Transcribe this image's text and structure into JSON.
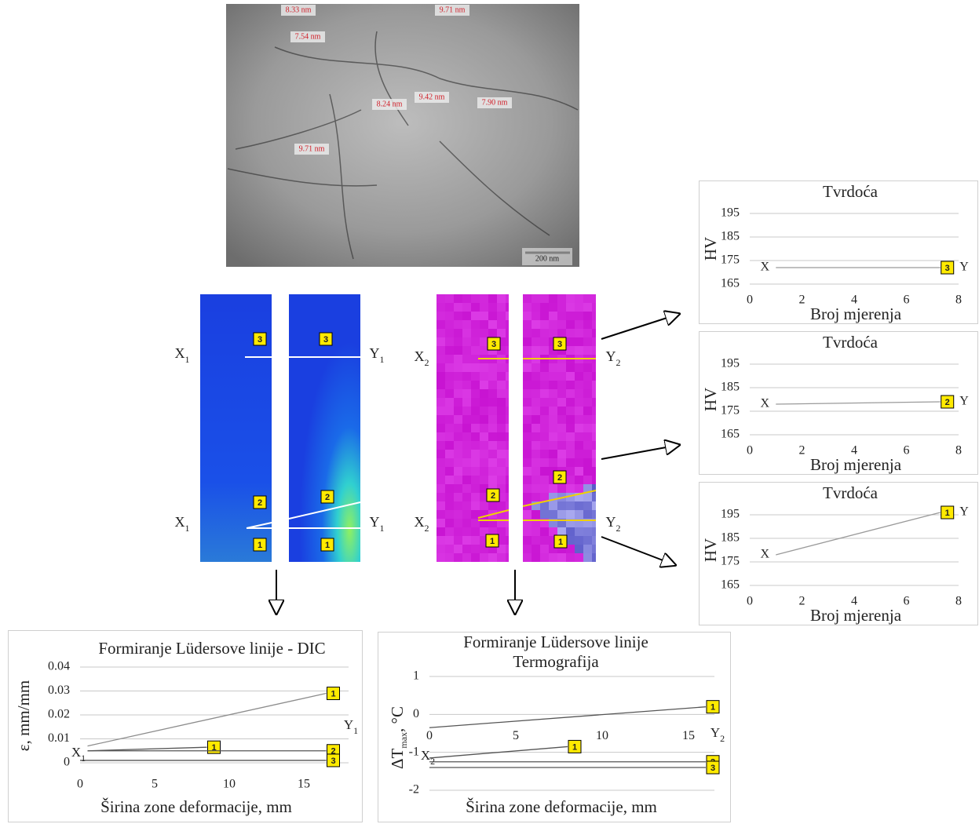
{
  "micrograph": {
    "measurements": [
      "8.33 nm",
      "9.71 nm",
      "7.54 nm",
      "8.24 nm",
      "9.42 nm",
      "7.90 nm",
      "9.71 nm"
    ],
    "scale_bar": "200 nm"
  },
  "dic_panels": {
    "labels": [
      {
        "text": "X",
        "sub": "1"
      },
      {
        "text": "Y",
        "sub": "1"
      },
      {
        "text": "X",
        "sub": "1"
      },
      {
        "text": "Y",
        "sub": "1"
      }
    ],
    "markers": [
      "3",
      "3",
      "2",
      "2",
      "1",
      "1"
    ]
  },
  "thermo_panels": {
    "labels": [
      {
        "text": "X",
        "sub": "2"
      },
      {
        "text": "Y",
        "sub": "2"
      },
      {
        "text": "X",
        "sub": "2"
      },
      {
        "text": "Y",
        "sub": "2"
      }
    ],
    "markers": [
      "3",
      "3",
      "2",
      "2",
      "1",
      "1"
    ]
  },
  "chart_data": [
    {
      "type": "line",
      "title": "Tvrdoća",
      "xlabel": "Broj mjerenja",
      "ylabel": "HV",
      "xlim": [
        0,
        8
      ],
      "xticks": [
        0,
        2,
        4,
        6,
        8
      ],
      "ylim": [
        165,
        195
      ],
      "yticks": [
        165,
        175,
        185,
        195
      ],
      "grid": true,
      "start_label": "X",
      "end_label": "Y",
      "series": [
        {
          "name": "3",
          "color": "#9a9a9a",
          "x": [
            1,
            7.3
          ],
          "values": [
            172,
            172
          ]
        }
      ]
    },
    {
      "type": "line",
      "title": "Tvrdoća",
      "xlabel": "Broj mjerenja",
      "ylabel": "HV",
      "xlim": [
        0,
        8
      ],
      "xticks": [
        0,
        2,
        4,
        6,
        8
      ],
      "ylim": [
        165,
        195
      ],
      "yticks": [
        165,
        175,
        185,
        195
      ],
      "grid": true,
      "start_label": "X",
      "end_label": "Y",
      "series": [
        {
          "name": "2",
          "color": "#9a9a9a",
          "x": [
            1,
            7.3
          ],
          "values": [
            178,
            179
          ]
        }
      ]
    },
    {
      "type": "line",
      "title": "Tvrdoća",
      "xlabel": "Broj mjerenja",
      "ylabel": "HV",
      "xlim": [
        0,
        8
      ],
      "xticks": [
        0,
        2,
        4,
        6,
        8
      ],
      "ylim": [
        165,
        195
      ],
      "yticks": [
        165,
        175,
        185,
        195
      ],
      "grid": true,
      "start_label": "X",
      "end_label": "Y",
      "series": [
        {
          "name": "1",
          "color": "#9a9a9a",
          "x": [
            1,
            7.3
          ],
          "values": [
            178,
            196
          ]
        }
      ]
    },
    {
      "type": "line",
      "title": "Formiranje Lüdersove linije - DIC",
      "xlabel": "Širina zone deformacije, mm",
      "ylabel": "ε, mm/mm",
      "xlim": [
        0,
        18
      ],
      "xticks": [
        0,
        5,
        10,
        15
      ],
      "ylim": [
        0,
        0.04
      ],
      "yticks": [
        0,
        0.01,
        0.02,
        0.03,
        0.04
      ],
      "grid": true,
      "start_label": {
        "text": "X",
        "sub": "1"
      },
      "end_label": {
        "text": "Y",
        "sub": "1"
      },
      "series": [
        {
          "name": "1",
          "color": "#8c8c8c",
          "x": [
            0.5,
            16.5
          ],
          "values": [
            0.007,
            0.029
          ]
        },
        {
          "name": "1",
          "color": "#555555",
          "x": [
            0.5,
            8.5
          ],
          "values": [
            0.005,
            0.0065
          ]
        },
        {
          "name": "2",
          "color": "#555555",
          "x": [
            0.5,
            16.5
          ],
          "values": [
            0.005,
            0.005
          ]
        },
        {
          "name": "3",
          "color": "#555555",
          "x": [
            0,
            16.5
          ],
          "values": [
            0.001,
            0.001
          ]
        }
      ]
    },
    {
      "type": "line",
      "title": [
        "Formiranje Lüdersove linije",
        "Termografija"
      ],
      "xlabel": "Širina zone deformacije, mm",
      "ylabel": {
        "text": "ΔT",
        "sub": "max",
        "rest": ", °C"
      },
      "xlim": [
        0,
        16.5
      ],
      "xticks": [
        0,
        5,
        10,
        15
      ],
      "ylim": [
        -2,
        1
      ],
      "yticks": [
        -2,
        -1,
        0,
        1
      ],
      "grid": true,
      "start_label": {
        "text": "X",
        "sub": "2"
      },
      "end_label": {
        "text": "Y",
        "sub": "2"
      },
      "series": [
        {
          "name": "1",
          "color": "#555555",
          "x": [
            0,
            16
          ],
          "values": [
            -0.35,
            0.2
          ]
        },
        {
          "name": "1",
          "color": "#555555",
          "x": [
            0,
            8
          ],
          "values": [
            -1.15,
            -0.85
          ]
        },
        {
          "name": "2",
          "color": "#555555",
          "x": [
            0,
            16
          ],
          "values": [
            -1.25,
            -1.25
          ]
        },
        {
          "name": "3",
          "color": "#555555",
          "x": [
            0,
            16
          ],
          "values": [
            -1.4,
            -1.4
          ]
        }
      ]
    }
  ]
}
